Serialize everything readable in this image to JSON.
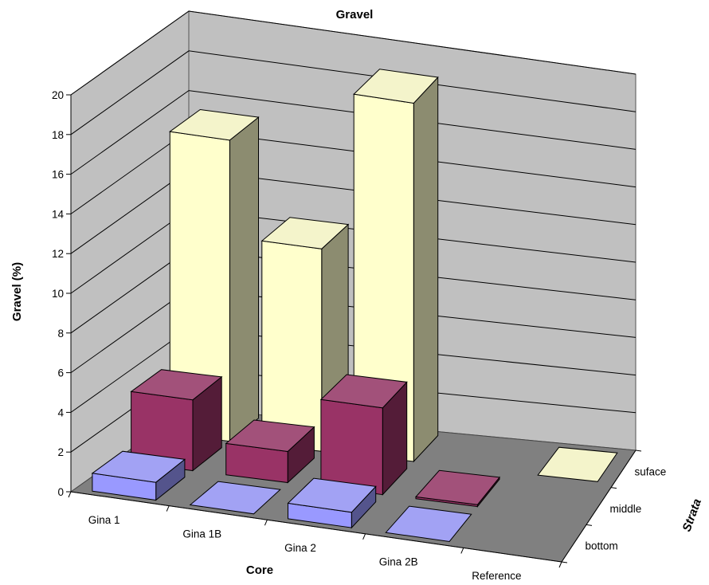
{
  "chart_data": {
    "type": "bar",
    "subtype": "3d-column",
    "title": "Gravel",
    "xlabel": "Core",
    "ylabel": "Gravel (%)",
    "zlabel": "Strata",
    "categories": [
      "Gina 1",
      "Gina 1B",
      "Gina 2",
      "Gina 2B",
      "Reference"
    ],
    "series": [
      {
        "name": "bottom",
        "values": [
          0.9,
          0,
          0.8,
          0,
          null
        ],
        "color": "#9999ff"
      },
      {
        "name": "middle",
        "values": [
          3.6,
          1.6,
          4.5,
          0.1,
          null
        ],
        "color": "#993366"
      },
      {
        "name": "suface",
        "values": [
          15.3,
          10.4,
          18.6,
          null,
          0
        ],
        "color": "#ffffcc"
      }
    ],
    "yticks": [
      "0",
      "2",
      "4",
      "6",
      "8",
      "10",
      "12",
      "14",
      "16",
      "18",
      "20"
    ],
    "ylim": [
      0,
      20
    ],
    "grid": true,
    "colors": {
      "walls": "#c0c0c0",
      "floor": "#808080",
      "gridline": "#000000"
    }
  }
}
